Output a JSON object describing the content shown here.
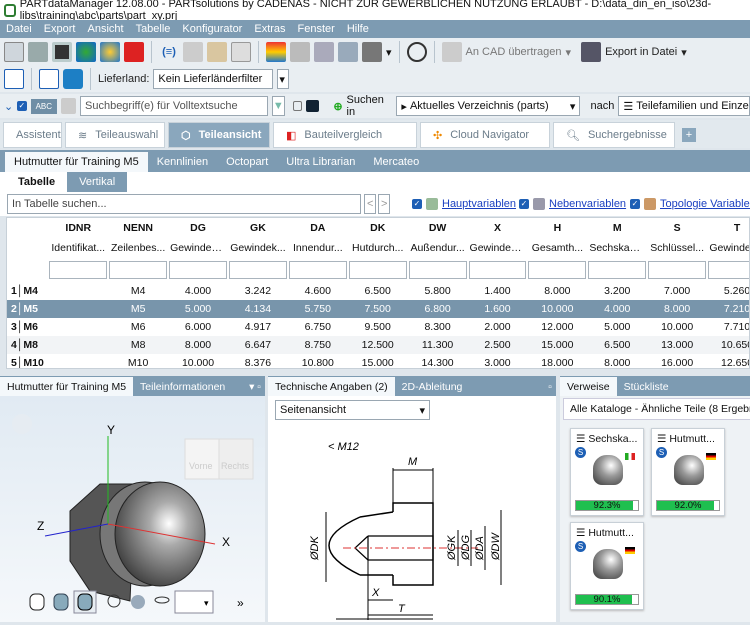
{
  "window": {
    "title": "PARTdataManager 12.08.00 - PARTsolutions by CADENAS - NICHT ZUR GEWERBLICHEN NUTZUNG ERLAUBT - D:\\data_din_en_iso\\23d-libs\\training\\abc\\parts\\part_xy.prj"
  },
  "menu": [
    "Datei",
    "Export",
    "Ansicht",
    "Tabelle",
    "Konfigurator",
    "Extras",
    "Fenster",
    "Hilfe"
  ],
  "toolbar": {
    "transfer_cad": "An CAD übertragen",
    "export_file": "Export in Datei",
    "country_label": "Lieferland:",
    "country_value": "Kein Lieferländerfilter"
  },
  "search": {
    "placeholder": "Suchbegriff(e) für Volltextsuche",
    "abc": "ABC",
    "search_in_label": "Suchen in",
    "search_in_value": "Aktuelles Verzeichnis (parts)",
    "after_label": "nach",
    "after_value": "Teilefamilien und Einzelteile"
  },
  "tabs": [
    {
      "label": "Assistent"
    },
    {
      "label": "Teileauswahl"
    },
    {
      "label": "Teileansicht",
      "active": true
    },
    {
      "label": "Bauteilvergleich"
    },
    {
      "label": "Cloud Navigator"
    },
    {
      "label": "Suchergebnisse"
    }
  ],
  "tabs_add": "+",
  "subtabs": [
    "Hutmutter für Training M5",
    "Kennlinien",
    "Octopart",
    "Ultra Librarian",
    "Mercateo"
  ],
  "viewtabs": [
    "Tabelle",
    "Vertikal"
  ],
  "table_search": {
    "placeholder": "In Tabelle suchen...",
    "prev": "<",
    "next": ">",
    "filters": [
      "Hauptvariablen",
      "Nebenvariablen",
      "Topologie Variablen"
    ]
  },
  "table": {
    "columns": [
      {
        "name": "IDNR",
        "desc": "Identifikat..."
      },
      {
        "name": "NENN",
        "desc": "Zeilenbes..."
      },
      {
        "name": "DG",
        "desc": "Gewinden..."
      },
      {
        "name": "GK",
        "desc": "Gewindek..."
      },
      {
        "name": "DA",
        "desc": "Innendur..."
      },
      {
        "name": "DK",
        "desc": "Hutdurch..."
      },
      {
        "name": "DW",
        "desc": "Außendur..."
      },
      {
        "name": "X",
        "desc": "Gewindea..."
      },
      {
        "name": "H",
        "desc": "Gesamth..."
      },
      {
        "name": "M",
        "desc": "Sechskant..."
      },
      {
        "name": "S",
        "desc": "Schlüssel..."
      },
      {
        "name": "T",
        "desc": "Gewindeti..."
      }
    ],
    "rows": [
      {
        "label": "1│M4",
        "cells": [
          "",
          "M4",
          "4.000",
          "3.242",
          "4.600",
          "6.500",
          "5.800",
          "1.400",
          "8.000",
          "3.200",
          "7.000",
          "5.260"
        ]
      },
      {
        "label": "2│M5",
        "selected": true,
        "cells": [
          "",
          "M5",
          "5.000",
          "4.134",
          "5.750",
          "7.500",
          "6.800",
          "1.600",
          "10.000",
          "4.000",
          "8.000",
          "7.210"
        ]
      },
      {
        "label": "3│M6",
        "cells": [
          "",
          "M6",
          "6.000",
          "4.917",
          "6.750",
          "9.500",
          "8.300",
          "2.000",
          "12.000",
          "5.000",
          "10.000",
          "7.710"
        ]
      },
      {
        "label": "4│M8",
        "cells": [
          "",
          "M8",
          "8.000",
          "6.647",
          "8.750",
          "12.500",
          "11.300",
          "2.500",
          "15.000",
          "6.500",
          "13.000",
          "10.650"
        ]
      },
      {
        "label": "5│M10",
        "cells": [
          "",
          "M10",
          "10.000",
          "8.376",
          "10.800",
          "15.000",
          "14.300",
          "3.000",
          "18.000",
          "8.000",
          "16.000",
          "12.650"
        ]
      }
    ]
  },
  "viewer": {
    "tabs": [
      "Hutmutter für Training M5",
      "Teileinformationen"
    ],
    "axes": {
      "x": "X",
      "y": "Y",
      "z": "Z"
    },
    "cube": {
      "front": "Vorne",
      "right": "Rechts"
    },
    "more": "»"
  },
  "drawing": {
    "tabs": [
      "Technische Angaben (2)",
      "2D-Ableitung"
    ],
    "view": "Seitenansicht",
    "labels": {
      "thread": "< M12",
      "m": "M",
      "dk": "ØDK",
      "gk": "ØGK",
      "dg": "ØDG",
      "da": "ØDA",
      "dw": "ØDW",
      "x": "X",
      "t": "T",
      "h": "H"
    }
  },
  "refs": {
    "tabs": [
      "Verweise",
      "Stückliste"
    ],
    "header": "Alle Kataloge - Ähnliche Teile (8 Ergebnisse)",
    "cards": [
      {
        "title": "Sechska...",
        "match": "92.3%",
        "percent": 92.3,
        "flag": "italy"
      },
      {
        "title": "Hutmutt...",
        "match": "92.0%",
        "percent": 92.0,
        "flag": "germany"
      },
      {
        "title": "Hutmutt...",
        "match": "90.1%",
        "percent": 90.1,
        "flag": "germany"
      }
    ]
  },
  "colors": {
    "accent": "#7d9bb2",
    "selected_row": "#7895ab",
    "match_bar": "#1fbf4f"
  }
}
